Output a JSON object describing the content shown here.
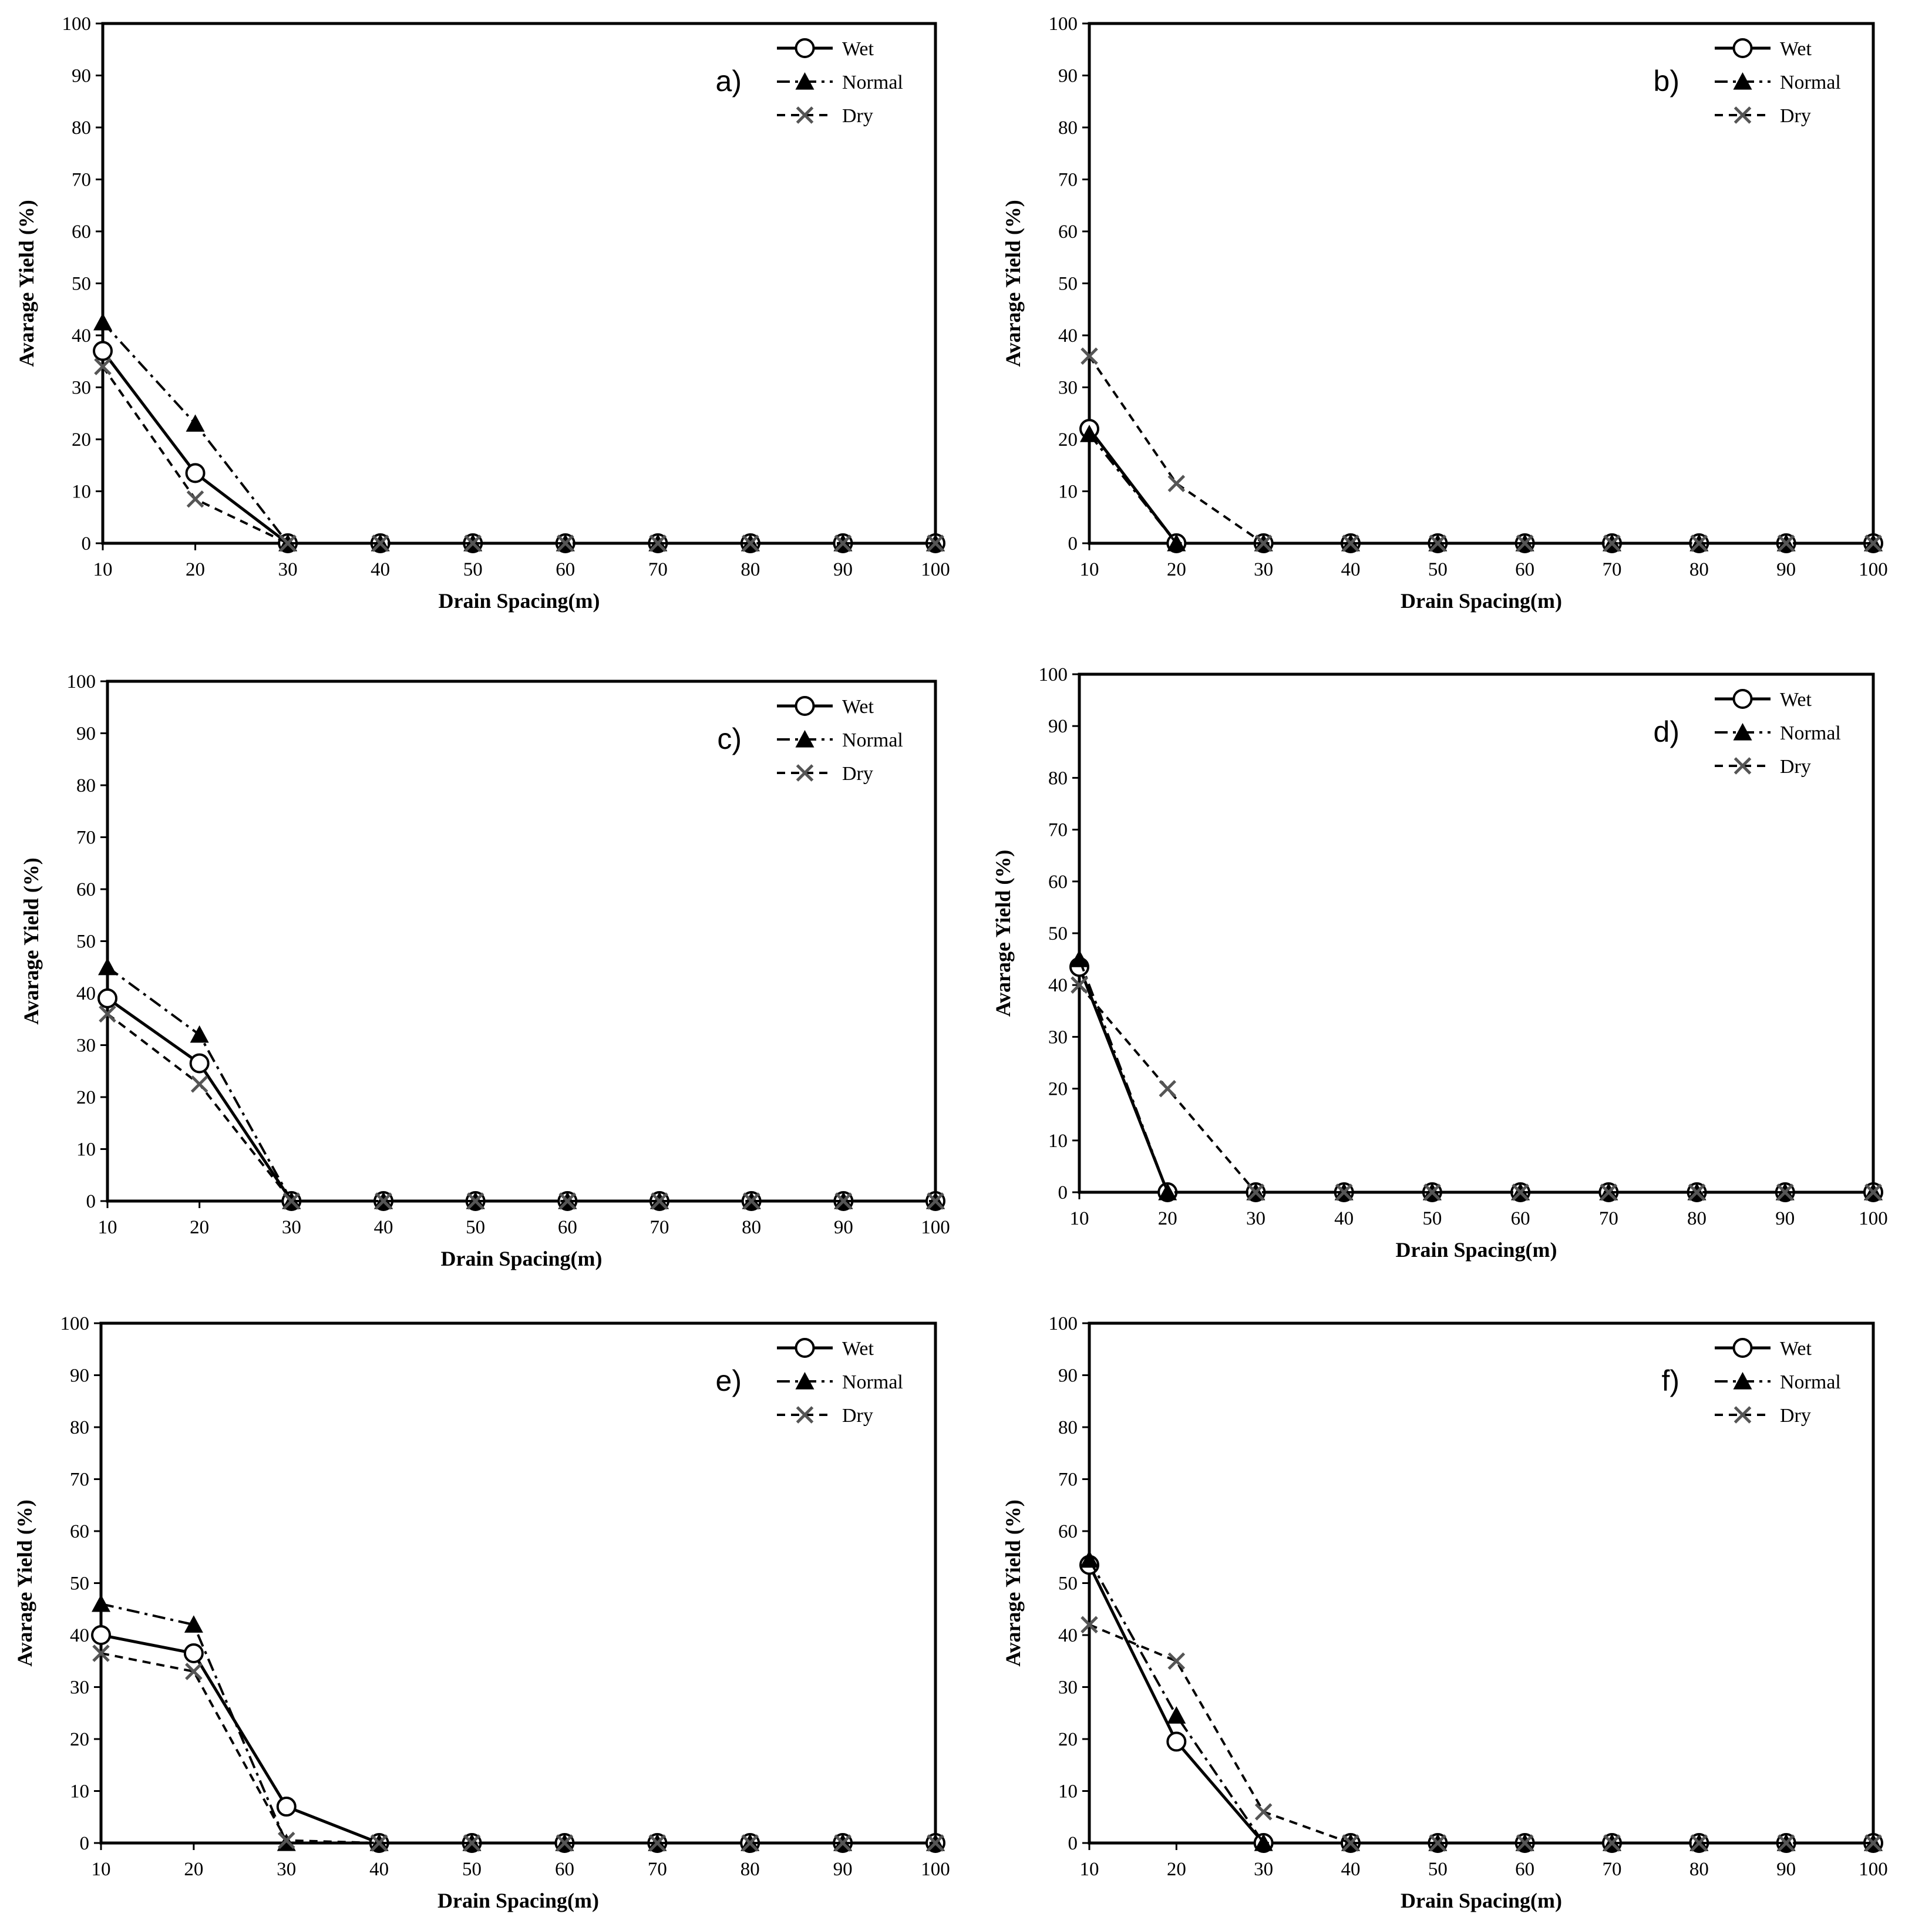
{
  "chart_data": [
    {
      "type": "line",
      "panel_label": "a)",
      "xlabel": "Drain Spacing(m)",
      "ylabel": "Avarage Yield (%)",
      "x": [
        10,
        20,
        30,
        40,
        50,
        60,
        70,
        80,
        90,
        100
      ],
      "xlim": [
        10,
        100
      ],
      "ylim": [
        0,
        100
      ],
      "yticks": [
        0,
        10,
        20,
        30,
        40,
        50,
        60,
        70,
        80,
        90,
        100
      ],
      "grid": false,
      "legend_position": "top-right",
      "series": [
        {
          "name": "Wet",
          "values": [
            37,
            13.5,
            0,
            0,
            0,
            0,
            0,
            0,
            0,
            0
          ]
        },
        {
          "name": "Normal",
          "values": [
            42.5,
            23,
            0,
            0,
            0,
            0,
            0,
            0,
            0,
            0
          ]
        },
        {
          "name": "Dry",
          "values": [
            34,
            8.5,
            0,
            0,
            0,
            0,
            0,
            0,
            0,
            0
          ]
        }
      ]
    },
    {
      "type": "line",
      "panel_label": "b)",
      "xlabel": "Drain Spacing(m)",
      "ylabel": "Avarage Yield (%)",
      "x": [
        10,
        20,
        30,
        40,
        50,
        60,
        70,
        80,
        90,
        100
      ],
      "xlim": [
        10,
        100
      ],
      "ylim": [
        0,
        100
      ],
      "yticks": [
        0,
        10,
        20,
        30,
        40,
        50,
        60,
        70,
        80,
        90,
        100
      ],
      "grid": false,
      "legend_position": "top-right",
      "series": [
        {
          "name": "Wet",
          "values": [
            22,
            0,
            0,
            0,
            0,
            0,
            0,
            0,
            0,
            0
          ]
        },
        {
          "name": "Normal",
          "values": [
            21,
            0,
            0,
            0,
            0,
            0,
            0,
            0,
            0,
            0
          ]
        },
        {
          "name": "Dry",
          "values": [
            36,
            11.5,
            0,
            0,
            0,
            0,
            0,
            0,
            0,
            0
          ]
        }
      ]
    },
    {
      "type": "line",
      "panel_label": "c)",
      "xlabel": "Drain Spacing(m)",
      "ylabel": "Avarage Yield (%)",
      "x": [
        10,
        20,
        30,
        40,
        50,
        60,
        70,
        80,
        90,
        100
      ],
      "xlim": [
        10,
        100
      ],
      "ylim": [
        0,
        100
      ],
      "yticks": [
        0,
        10,
        20,
        30,
        40,
        50,
        60,
        70,
        80,
        90,
        100
      ],
      "grid": false,
      "legend_position": "top-right",
      "series": [
        {
          "name": "Wet",
          "values": [
            39,
            26.5,
            0,
            0,
            0,
            0,
            0,
            0,
            0,
            0
          ]
        },
        {
          "name": "Normal",
          "values": [
            45,
            32,
            0,
            0,
            0,
            0,
            0,
            0,
            0,
            0
          ]
        },
        {
          "name": "Dry",
          "values": [
            36,
            22.5,
            0,
            0,
            0,
            0,
            0,
            0,
            0,
            0
          ]
        }
      ]
    },
    {
      "type": "line",
      "panel_label": "d)",
      "xlabel": "Drain Spacing(m)",
      "ylabel": "Avarage Yield (%)",
      "x": [
        10,
        20,
        30,
        40,
        50,
        60,
        70,
        80,
        90,
        100
      ],
      "xlim": [
        10,
        100
      ],
      "ylim": [
        0,
        100
      ],
      "yticks": [
        0,
        10,
        20,
        30,
        40,
        50,
        60,
        70,
        80,
        90,
        100
      ],
      "grid": false,
      "legend_position": "top-right",
      "series": [
        {
          "name": "Wet",
          "values": [
            43.5,
            0,
            0,
            0,
            0,
            0,
            0,
            0,
            0,
            0
          ]
        },
        {
          "name": "Normal",
          "values": [
            45,
            0,
            0,
            0,
            0,
            0,
            0,
            0,
            0,
            0
          ]
        },
        {
          "name": "Dry",
          "values": [
            40,
            20,
            0,
            0,
            0,
            0,
            0,
            0,
            0,
            0
          ]
        }
      ]
    },
    {
      "type": "line",
      "panel_label": "e)",
      "xlabel": "Drain Spacing(m)",
      "ylabel": "Avarage Yield (%)",
      "x": [
        10,
        20,
        30,
        40,
        50,
        60,
        70,
        80,
        90,
        100
      ],
      "xlim": [
        10,
        100
      ],
      "ylim": [
        0,
        100
      ],
      "yticks": [
        0,
        10,
        20,
        30,
        40,
        50,
        60,
        70,
        80,
        90,
        100
      ],
      "grid": false,
      "legend_position": "top-right",
      "series": [
        {
          "name": "Wet",
          "values": [
            40,
            36.5,
            7,
            0,
            0,
            0,
            0,
            0,
            0,
            0
          ]
        },
        {
          "name": "Normal",
          "values": [
            46,
            42,
            0,
            0,
            0,
            0,
            0,
            0,
            0,
            0
          ]
        },
        {
          "name": "Dry",
          "values": [
            36.5,
            33,
            0.5,
            0,
            0,
            0,
            0,
            0,
            0,
            0
          ]
        }
      ]
    },
    {
      "type": "line",
      "panel_label": "f)",
      "xlabel": "Drain Spacing(m)",
      "ylabel": "Avarage Yield (%)",
      "x": [
        10,
        20,
        30,
        40,
        50,
        60,
        70,
        80,
        90,
        100
      ],
      "xlim": [
        10,
        100
      ],
      "ylim": [
        0,
        100
      ],
      "yticks": [
        0,
        10,
        20,
        30,
        40,
        50,
        60,
        70,
        80,
        90,
        100
      ],
      "grid": false,
      "legend_position": "top-right",
      "series": [
        {
          "name": "Wet",
          "values": [
            53.5,
            19.5,
            0,
            0,
            0,
            0,
            0,
            0,
            0,
            0
          ]
        },
        {
          "name": "Normal",
          "values": [
            54.5,
            24.5,
            0,
            0,
            0,
            0,
            0,
            0,
            0,
            0
          ]
        },
        {
          "name": "Dry",
          "values": [
            42,
            35,
            6,
            0,
            0,
            0,
            0,
            0,
            0,
            0
          ]
        }
      ]
    }
  ]
}
